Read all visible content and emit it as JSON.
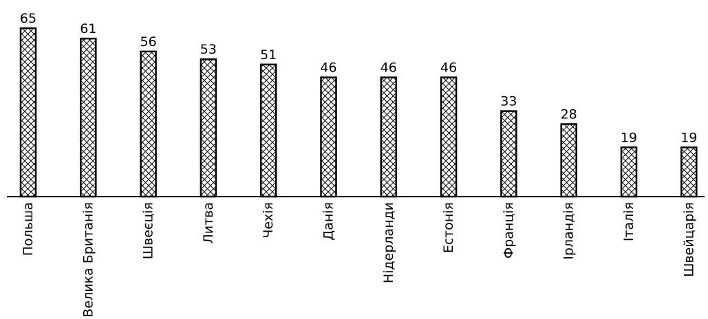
{
  "chart_data": {
    "type": "bar",
    "title": "",
    "xlabel": "",
    "ylabel": "",
    "categories": [
      "Польша",
      "Велика Британія",
      "Швеєція",
      "Литва",
      "Чехія",
      "Данія",
      "Нідерланди",
      "Естонія",
      "Франція",
      "Ірландія",
      "Італія",
      "Швейцарія"
    ],
    "values": [
      65,
      61,
      56,
      53,
      51,
      46,
      46,
      46,
      33,
      28,
      19,
      19
    ],
    "value_labels": [
      "65",
      "61",
      "56",
      "53",
      "51",
      "46",
      "46",
      "46",
      "33",
      "28",
      "19",
      "19"
    ],
    "ylim": [
      0,
      65
    ],
    "grid": false,
    "legend": "none",
    "bar_fill": "cross-hatch",
    "colors": {
      "bar_stroke": "#000000",
      "hatch": "#000000",
      "background": "#ffffff",
      "text": "#000000"
    }
  }
}
